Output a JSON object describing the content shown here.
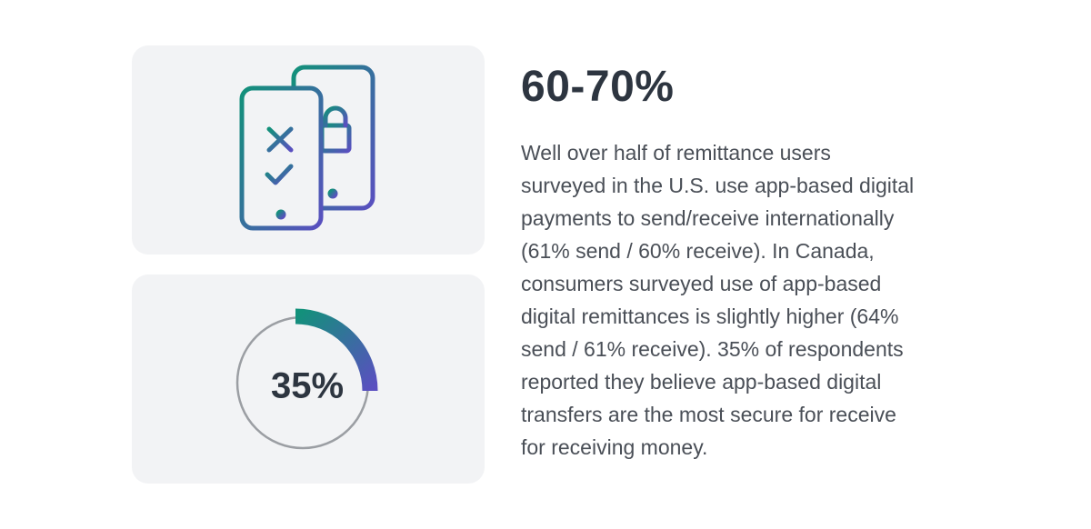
{
  "stat": {
    "label": "35%"
  },
  "headline": "60-70%",
  "body_lines": [
    "Well over half of remittance users",
    "surveyed in the U.S. use app-based digital",
    "payments to send/receive internationally",
    "(61% send / 60% receive). In Canada,",
    "consumers surveyed use of app-based",
    "digital remittances is slightly higher (64%",
    "send / 61% receive). 35% of respondents",
    "reported they believe app-based digital",
    "transfers are the most secure for receive",
    "for receiving money."
  ]
}
